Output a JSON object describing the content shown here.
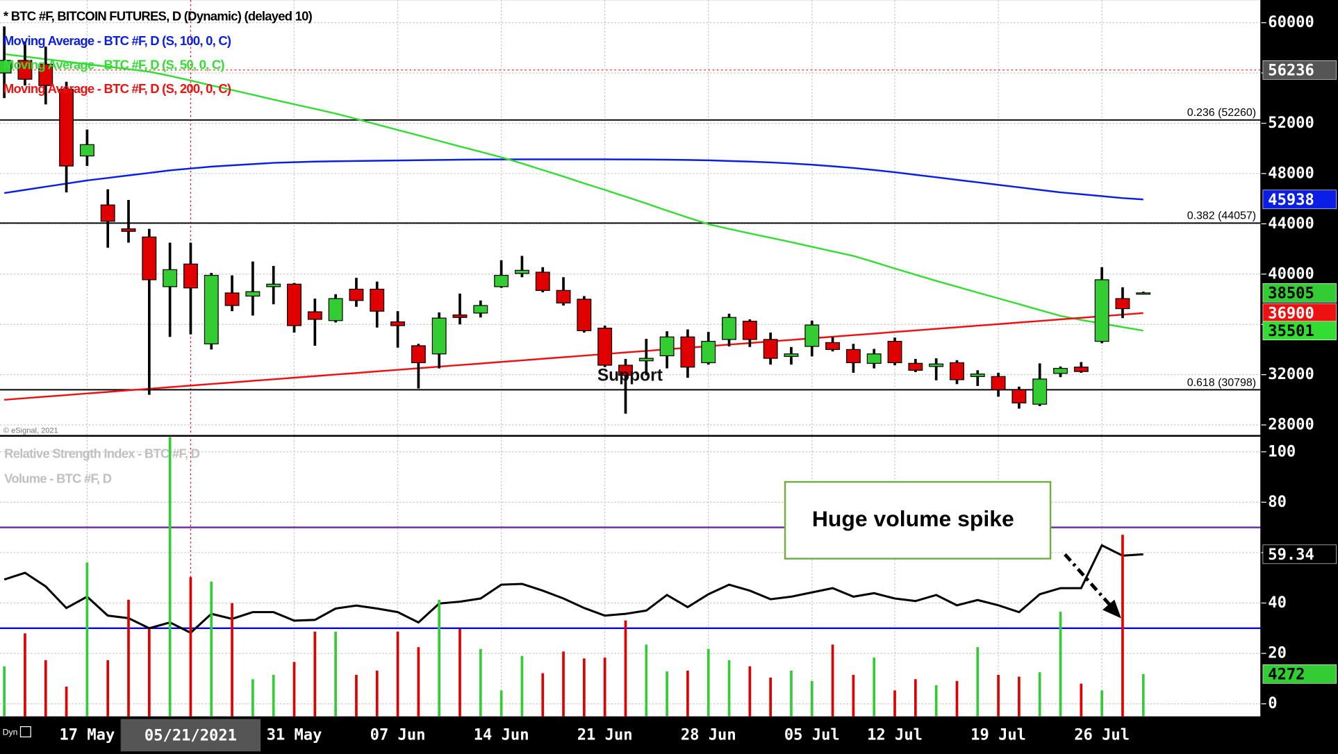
{
  "chart_data": [
    {
      "type": "candlestick",
      "title": "* BTC #F, BITCOIN FUTURES, D (Dynamic) (delayed 10)",
      "categories": [
        null,
        null,
        null,
        null,
        "17 May",
        null,
        null,
        null,
        null,
        null,
        null,
        null,
        null,
        null,
        "31 May",
        null,
        null,
        null,
        null,
        "07 Jun",
        null,
        null,
        null,
        null,
        "14 Jun",
        null,
        null,
        null,
        null,
        "21 Jun",
        null,
        null,
        null,
        null,
        "28 Jun",
        null,
        null,
        null,
        null,
        "05 Jul",
        null,
        null,
        null,
        "12 Jul",
        null,
        null,
        null,
        null,
        "19 Jul",
        null,
        null,
        null,
        null,
        "26 Jul",
        null,
        null
      ],
      "open": [
        56000,
        57000,
        56700,
        54700,
        49400,
        45500,
        43600,
        42950,
        39000,
        40800,
        34450,
        38500,
        38250,
        39000,
        39200,
        37000,
        36300,
        38800,
        38800,
        36200,
        34300,
        33650,
        36750,
        36900,
        39000,
        40050,
        40150,
        38700,
        38000,
        35700,
        32750,
        33100,
        33500,
        35000,
        32950,
        34800,
        36250,
        34800,
        33450,
        34250,
        34550,
        34000,
        32900,
        34650,
        32900,
        32650,
        32950,
        31850,
        31850,
        30800,
        29650,
        32100,
        32600,
        34650,
        38050,
        38400
      ],
      "high": [
        59700,
        58500,
        58100,
        55300,
        51500,
        46750,
        45900,
        43600,
        42500,
        42500,
        40100,
        39900,
        41000,
        40650,
        39300,
        38050,
        38400,
        39700,
        39400,
        37050,
        34450,
        36950,
        38450,
        37900,
        41100,
        41450,
        40550,
        39750,
        38250,
        35900,
        33250,
        34850,
        35450,
        35600,
        35400,
        36850,
        36400,
        35350,
        34200,
        36300,
        35000,
        34450,
        34050,
        34950,
        33250,
        33300,
        33150,
        32350,
        32150,
        31050,
        32900,
        32650,
        33000,
        40550,
        38950,
        38600
      ],
      "low": [
        54000,
        55000,
        53500,
        46500,
        48600,
        42100,
        42500,
        30400,
        35000,
        35200,
        34000,
        37050,
        36700,
        37600,
        35350,
        34300,
        36150,
        37400,
        35750,
        34150,
        30900,
        32500,
        36000,
        36550,
        38900,
        39750,
        38550,
        37500,
        35350,
        32600,
        28900,
        31950,
        32500,
        31750,
        32800,
        34250,
        34200,
        32800,
        32800,
        33450,
        33850,
        32150,
        32500,
        32750,
        32200,
        31550,
        31250,
        31100,
        30250,
        29300,
        29500,
        31800,
        32150,
        34500,
        36500,
        38400
      ],
      "close": [
        57000,
        55500,
        55000,
        48600,
        50300,
        44200,
        43400,
        39550,
        40350,
        38900,
        39900,
        37500,
        38600,
        39200,
        35900,
        36400,
        38050,
        37900,
        37050,
        35900,
        32950,
        36500,
        36550,
        37500,
        39900,
        40300,
        38700,
        37700,
        35500,
        32750,
        31950,
        33300,
        35000,
        32600,
        34650,
        36550,
        34800,
        33300,
        33650,
        35950,
        34000,
        32950,
        33650,
        32950,
        32350,
        32850,
        31600,
        32050,
        30800,
        29750,
        31650,
        32500,
        32250,
        39550,
        37250,
        38505
      ],
      "up_color": "#33cc33",
      "down_color": "#e00000",
      "series": [
        {
          "name": "Moving Average - BTC #F, D (S, 100, 0, C)",
          "color": "#0a1ee6",
          "values": [
            46450,
            46700,
            46950,
            47200,
            47450,
            47650,
            47850,
            48050,
            48250,
            48400,
            48550,
            48650,
            48750,
            48850,
            48900,
            48950,
            48980,
            49000,
            49020,
            49040,
            49060,
            49080,
            49100,
            49110,
            49120,
            49130,
            49130,
            49130,
            49130,
            49130,
            49120,
            49110,
            49100,
            49080,
            49050,
            49000,
            48950,
            48880,
            48800,
            48700,
            48580,
            48440,
            48280,
            48100,
            47900,
            47700,
            47500,
            47300,
            47100,
            46900,
            46700,
            46500,
            46350,
            46200,
            46050,
            45938
          ]
        },
        {
          "name": "Moving Average - BTC #F, D (S, 50, 0, C)",
          "color": "#33dd33",
          "values": [
            57500,
            57300,
            57100,
            56900,
            56700,
            56500,
            56300,
            56100,
            55770,
            55400,
            55010,
            54640,
            54270,
            53880,
            53510,
            53140,
            52770,
            52340,
            51900,
            51470,
            51040,
            50590,
            50150,
            49730,
            49290,
            48800,
            48280,
            47760,
            47220,
            46700,
            46160,
            45620,
            45050,
            44510,
            43970,
            43600,
            43240,
            42890,
            42540,
            42170,
            41810,
            41450,
            40960,
            40440,
            39950,
            39460,
            39000,
            38530,
            38070,
            37610,
            37140,
            36680,
            36350,
            36070,
            35780,
            35501
          ]
        },
        {
          "name": "Moving Average - BTC #F, D (S, 200, 0, C)",
          "color": "#ee1111",
          "values": [
            30000,
            30125,
            30251,
            30376,
            30502,
            30627,
            30753,
            30878,
            31004,
            31129,
            31255,
            31380,
            31505,
            31631,
            31756,
            31882,
            32007,
            32133,
            32258,
            32384,
            32509,
            32635,
            32760,
            32885,
            33011,
            33136,
            33262,
            33387,
            33513,
            33638,
            33764,
            33889,
            34015,
            34140,
            34265,
            34391,
            34516,
            34642,
            34767,
            34893,
            35018,
            35144,
            35269,
            35395,
            35520,
            35645,
            35771,
            35896,
            36022,
            36147,
            36273,
            36398,
            36524,
            36649,
            36775,
            36900
          ]
        }
      ],
      "ylim": [
        27200,
        61800
      ],
      "yticks": [
        28000,
        32000,
        36000,
        40000,
        44000,
        48000,
        52000,
        56000,
        60000
      ],
      "grid": true,
      "fib_levels": [
        {
          "value": 52260,
          "label": "0.236 (52260)"
        },
        {
          "value": 44057,
          "label": "0.382 (44057)"
        },
        {
          "value": 30798,
          "label": "0.618 (30798)"
        }
      ],
      "annotation": "Support",
      "cursor_price": 56236,
      "cursor_date": "05/21/2021",
      "copyright": "© eSignal, 2021",
      "footer": "Dyn"
    },
    {
      "type": "indicator",
      "series": [
        {
          "name": "Relative Strength Index - BTC #F, D",
          "color": "#000000",
          "values": [
            49.3,
            52,
            46.6,
            38,
            42.5,
            35,
            34,
            30,
            32.3,
            28.2,
            35.7,
            33.7,
            36.4,
            36.4,
            33,
            33.3,
            37.8,
            39,
            37.8,
            36.4,
            32.3,
            39.8,
            40.5,
            41.8,
            47.3,
            47.6,
            44.9,
            41.8,
            38,
            35,
            35.7,
            37,
            43.2,
            38.4,
            43.5,
            47.3,
            44.9,
            41.5,
            42.5,
            44.2,
            45.9,
            42.5,
            43.9,
            41.8,
            40.8,
            43.2,
            39.1,
            41.2,
            39.1,
            36.4,
            43.5,
            45.9,
            45.9,
            62.9,
            58.8,
            59.34
          ]
        },
        {
          "name": "Volume - BTC #F, D",
          "axis": "y2",
          "values": [
            5060,
            8370,
            5670,
            3000,
            15520,
            5670,
            11770,
            8810,
            28170,
            14040,
            13600,
            11420,
            3750,
            4190,
            5490,
            8550,
            8550,
            4190,
            4620,
            8550,
            6980,
            11770,
            8810,
            6800,
            2620,
            6100,
            4360,
            6540,
            5840,
            5930,
            9680,
            7240,
            4530,
            4620,
            6800,
            5670,
            5060,
            3920,
            4620,
            3580,
            7240,
            4190,
            5930,
            2620,
            3750,
            3140,
            3580,
            6980,
            4190,
            4010,
            4450,
            10550,
            3310,
            2620,
            18310,
            4272
          ]
        }
      ],
      "ylim": [
        -5,
        106
      ],
      "yticks": [
        0,
        20,
        40,
        60,
        80,
        100
      ],
      "y2lim": [
        0,
        28200
      ],
      "ref_lines": [
        {
          "value": 70,
          "color": "#7030a0"
        },
        {
          "value": 30,
          "color": "#0000ff"
        }
      ],
      "annotation": "Huge volume spike"
    }
  ]
}
